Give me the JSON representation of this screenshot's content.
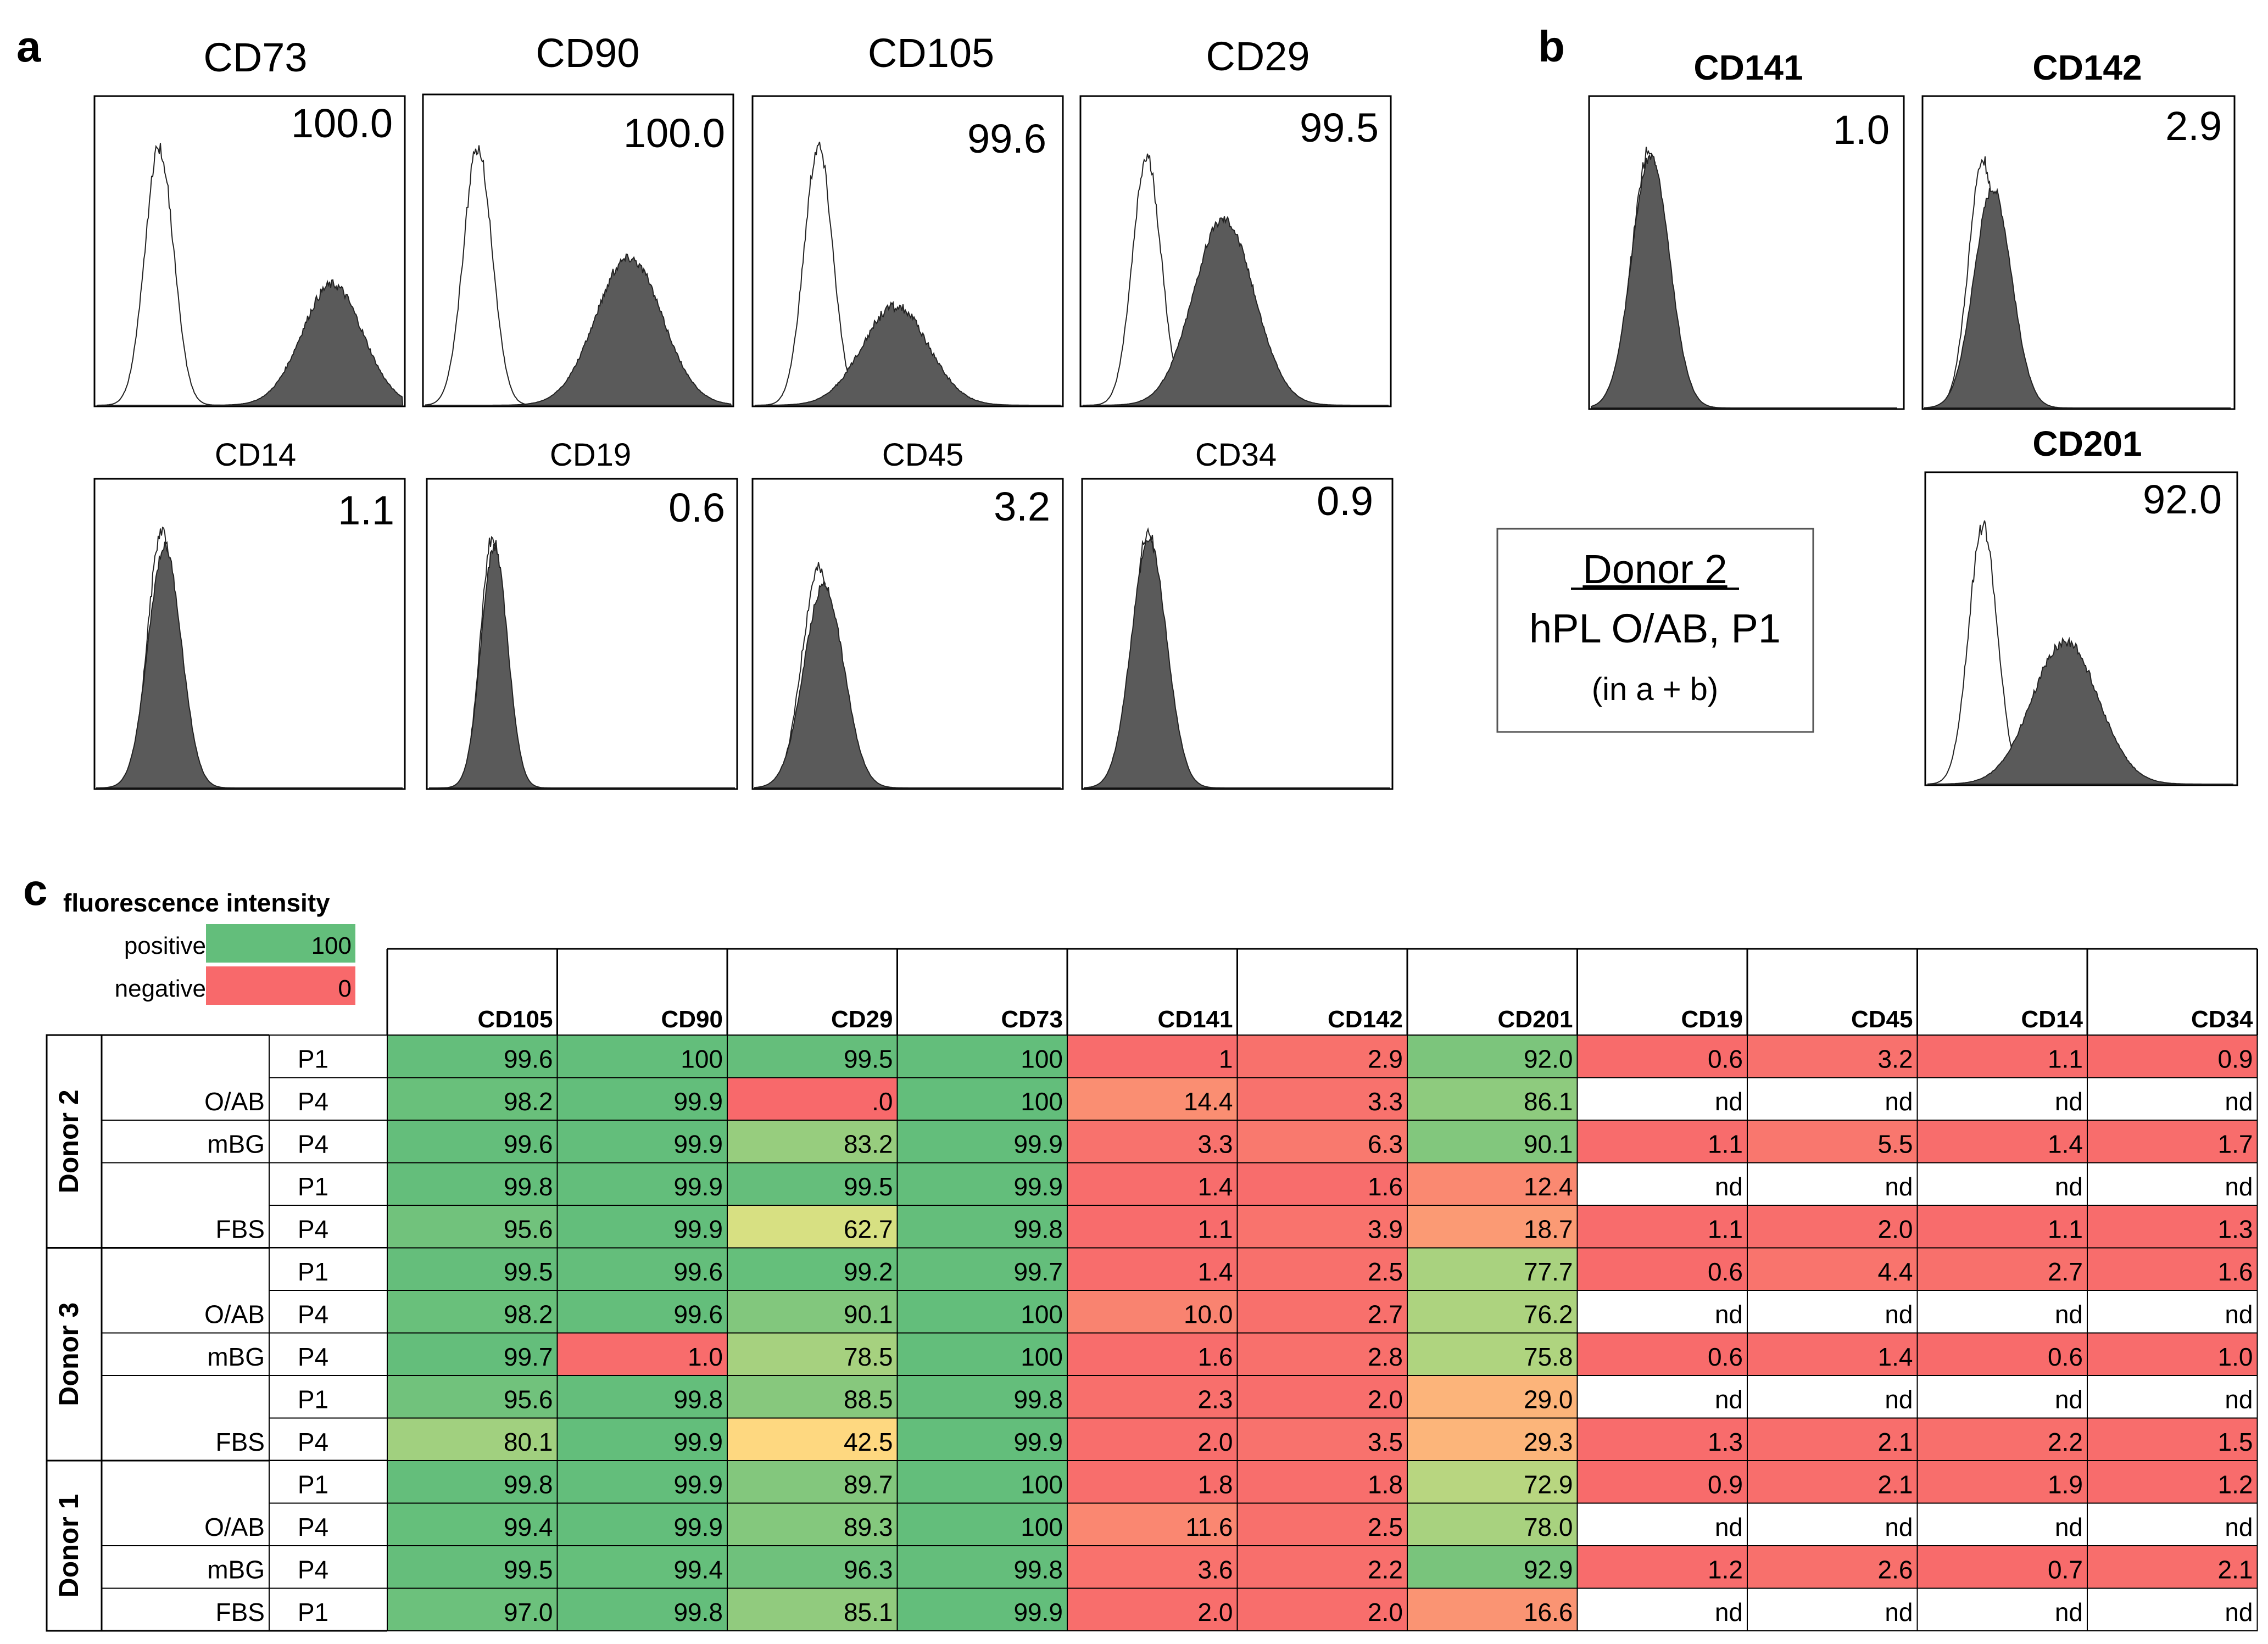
{
  "panel_labels": {
    "a": "a",
    "b": "b",
    "c": "c"
  },
  "panel_a": {
    "top_row": [
      {
        "marker": "CD73",
        "value": "100.0"
      },
      {
        "marker": "CD90",
        "value": "100.0"
      },
      {
        "marker": "CD105",
        "value": "99.6"
      },
      {
        "marker": "CD29",
        "value": "99.5"
      }
    ],
    "bottom_row": [
      {
        "marker": "CD14",
        "value": "1.1"
      },
      {
        "marker": "CD19",
        "value": "0.6"
      },
      {
        "marker": "CD45",
        "value": "3.2"
      },
      {
        "marker": "CD34",
        "value": "0.9"
      }
    ]
  },
  "panel_b": {
    "plots": [
      {
        "marker": "CD141",
        "value": "1.0"
      },
      {
        "marker": "CD142",
        "value": "2.9"
      },
      {
        "marker": "CD201",
        "value": "92.0"
      }
    ],
    "donor_box": {
      "title": "Donor 2",
      "subtitle": "hPL O/AB, P1",
      "note": "(in a + b)"
    }
  },
  "panel_c": {
    "legend": {
      "title": "fluorescence intensity",
      "positive_label": "positive",
      "positive_value": "100",
      "negative_label": "negative",
      "negative_value": "0"
    },
    "columns": [
      "CD105",
      "CD90",
      "CD29",
      "CD73",
      "CD141",
      "CD142",
      "CD201",
      "CD19",
      "CD45",
      "CD14",
      "CD34"
    ],
    "donors": [
      {
        "name": "Donor 2",
        "rows": [
          {
            "medium": "",
            "passage": "P1",
            "values": [
              "99.6",
              "100",
              "99.5",
              "100",
              "1",
              "2.9",
              "92.0",
              "0.6",
              "3.2",
              "1.1",
              "0.9"
            ]
          },
          {
            "medium": "O/AB",
            "passage": "P4",
            "values": [
              "98.2",
              "99.9",
              ".0",
              "100",
              "14.4",
              "3.3",
              "86.1",
              "nd",
              "nd",
              "nd",
              "nd"
            ]
          },
          {
            "medium": "mBG",
            "passage": "P4",
            "values": [
              "99.6",
              "99.9",
              "83.2",
              "99.9",
              "3.3",
              "6.3",
              "90.1",
              "1.1",
              "5.5",
              "1.4",
              "1.7"
            ]
          },
          {
            "medium": "",
            "passage": "P1",
            "values": [
              "99.8",
              "99.9",
              "99.5",
              "99.9",
              "1.4",
              "1.6",
              "12.4",
              "nd",
              "nd",
              "nd",
              "nd"
            ]
          },
          {
            "medium": "FBS",
            "passage": "P4",
            "values": [
              "95.6",
              "99.9",
              "62.7",
              "99.8",
              "1.1",
              "3.9",
              "18.7",
              "1.1",
              "2.0",
              "1.1",
              "1.3"
            ]
          }
        ]
      },
      {
        "name": "Donor 3",
        "rows": [
          {
            "medium": "",
            "passage": "P1",
            "values": [
              "99.5",
              "99.6",
              "99.2",
              "99.7",
              "1.4",
              "2.5",
              "77.7",
              "0.6",
              "4.4",
              "2.7",
              "1.6"
            ]
          },
          {
            "medium": "O/AB",
            "passage": "P4",
            "values": [
              "98.2",
              "99.6",
              "90.1",
              "100",
              "10.0",
              "2.7",
              "76.2",
              "nd",
              "nd",
              "nd",
              "nd"
            ]
          },
          {
            "medium": "mBG",
            "passage": "P4",
            "values": [
              "99.7",
              "1.0",
              "78.5",
              "100",
              "1.6",
              "2.8",
              "75.8",
              "0.6",
              "1.4",
              "0.6",
              "1.0"
            ]
          },
          {
            "medium": "",
            "passage": "P1",
            "values": [
              "95.6",
              "99.8",
              "88.5",
              "99.8",
              "2.3",
              "2.0",
              "29.0",
              "nd",
              "nd",
              "nd",
              "nd"
            ]
          },
          {
            "medium": "FBS",
            "passage": "P4",
            "values": [
              "80.1",
              "99.9",
              "42.5",
              "99.9",
              "2.0",
              "3.5",
              "29.3",
              "1.3",
              "2.1",
              "2.2",
              "1.5"
            ]
          }
        ]
      },
      {
        "name": "Donor 1",
        "rows": [
          {
            "medium": "",
            "passage": "P1",
            "values": [
              "99.8",
              "99.9",
              "89.7",
              "100",
              "1.8",
              "1.8",
              "72.9",
              "0.9",
              "2.1",
              "1.9",
              "1.2"
            ]
          },
          {
            "medium": "O/AB",
            "passage": "P4",
            "values": [
              "99.4",
              "99.9",
              "89.3",
              "100",
              "11.6",
              "2.5",
              "78.0",
              "nd",
              "nd",
              "nd",
              "nd"
            ]
          },
          {
            "medium": "mBG",
            "passage": "P4",
            "values": [
              "99.5",
              "99.4",
              "96.3",
              "99.8",
              "3.6",
              "2.2",
              "92.9",
              "1.2",
              "2.6",
              "0.7",
              "2.1"
            ]
          },
          {
            "medium": "FBS",
            "passage": "P1",
            "values": [
              "97.0",
              "99.8",
              "85.1",
              "99.9",
              "2.0",
              "2.0",
              "16.6",
              "nd",
              "nd",
              "nd",
              "nd"
            ]
          }
        ]
      }
    ]
  },
  "colors": {
    "positive": "#63be7b",
    "negative": "#f8696b",
    "mid": "#ffeb84",
    "histogram_fill": "#5a5a5a"
  }
}
